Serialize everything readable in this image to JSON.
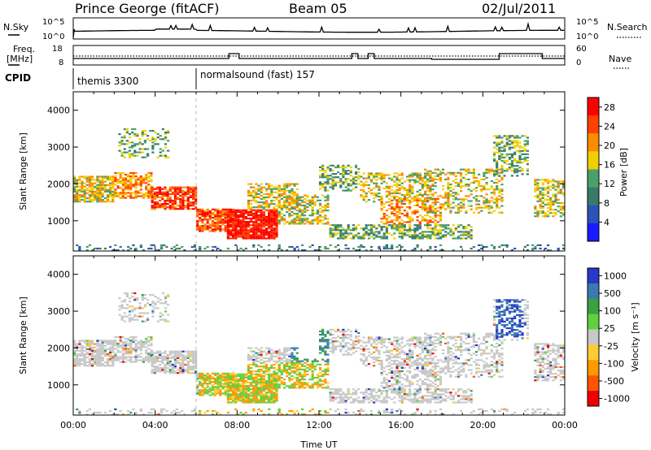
{
  "header": {
    "station": "Prince George (fitACF)",
    "beam": "Beam 05",
    "date": "02/Jul/2011"
  },
  "strip_labels": {
    "nsky": "N.Sky",
    "nsearch": "N.Search",
    "freq_line1": "Freq.",
    "freq_line2": "[MHz]",
    "nave": "Nave",
    "cpid": "CPID"
  },
  "cpid_modes": [
    {
      "label": "themis 3300",
      "start_hour": 0.0
    },
    {
      "label": "normalsound (fast) 157",
      "start_hour": 6.0
    }
  ],
  "time_axis": {
    "label": "Time UT",
    "ticks": [
      "00:00",
      "04:00",
      "08:00",
      "12:00",
      "16:00",
      "20:00",
      "00:00"
    ],
    "range_hours": [
      0,
      24
    ]
  },
  "chart_data": [
    {
      "type": "line",
      "name": "noise",
      "left_axis_label": "N.Sky",
      "left_ticks": [
        "10^5",
        "10^0"
      ],
      "right_axis_label": "N.Search",
      "right_ticks": [
        "10^5",
        "10^0"
      ],
      "ylim": [
        0,
        5
      ],
      "x_range_hours": [
        0,
        24
      ]
    },
    {
      "type": "line",
      "name": "freq_nave",
      "left_axis_label": "Freq. [MHz]",
      "left_ticks": [
        "18",
        "8"
      ],
      "right_axis_label": "Nave",
      "right_ticks": [
        "60",
        "0"
      ],
      "freq_ylim": [
        8,
        18
      ],
      "nave_ylim": [
        0,
        60
      ],
      "x_range_hours": [
        0,
        24
      ]
    },
    {
      "type": "heatmap",
      "name": "power",
      "ylabel": "Slant Range [km]",
      "yticks": [
        "1000",
        "2000",
        "3000",
        "4000"
      ],
      "ylim": [
        180,
        4500
      ],
      "x_range_hours": [
        0,
        24
      ],
      "colorbar_label": "Power [dB]",
      "colorbar_ticks": [
        "4",
        "8",
        "12",
        "16",
        "20",
        "24",
        "28"
      ],
      "colorbar_range": [
        0,
        30
      ],
      "colors": [
        "#1a1aff",
        "#2a52b8",
        "#3a7a6a",
        "#4aa068",
        "#f0d000",
        "#ff8c00",
        "#ff4000",
        "#ff0000"
      ]
    },
    {
      "type": "heatmap",
      "name": "velocity",
      "ylabel": "Slant Range [km]",
      "yticks": [
        "1000",
        "2000",
        "3000",
        "4000"
      ],
      "ylim": [
        180,
        4500
      ],
      "x_range_hours": [
        0,
        24
      ],
      "colorbar_label": "Velocity [m s⁻¹]",
      "colorbar_ticks": [
        "1000",
        "500",
        "100",
        "25",
        "-25",
        "-100",
        "-500",
        "-1000"
      ],
      "colors": [
        "#2838c8",
        "#3a7ab0",
        "#3aa040",
        "#60d040",
        "#c8c8c8",
        "#ffcc33",
        "#ff9900",
        "#ff5500",
        "#ee0000"
      ]
    }
  ]
}
